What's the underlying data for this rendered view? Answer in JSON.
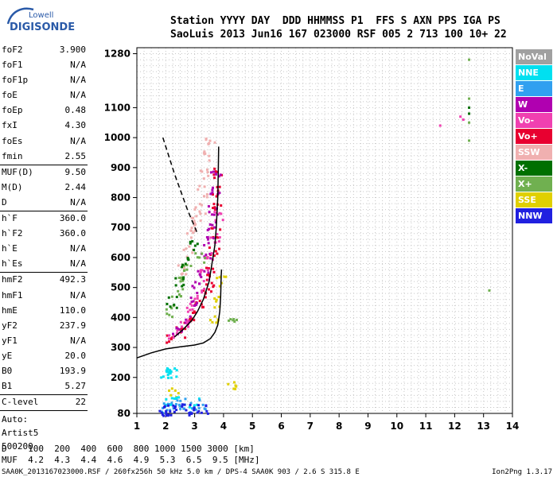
{
  "logo": {
    "line1": "Lowell",
    "line2": "DIGISONDE"
  },
  "header": {
    "row1": "Station YYYY DAY  DDD HHMMSS P1  FFS S AXN PPS IGA PS",
    "row2": "SaoLuis 2013 Jun16 167 023000 RSF 005 2 713 100 10+ 22"
  },
  "params": {
    "group1": [
      {
        "k": "foF2",
        "v": "3.900"
      },
      {
        "k": "foF1",
        "v": "N/A"
      },
      {
        "k": "foF1p",
        "v": "N/A"
      },
      {
        "k": "foE",
        "v": "N/A"
      },
      {
        "k": "foEp",
        "v": "0.48"
      },
      {
        "k": "fxI",
        "v": "4.30"
      },
      {
        "k": "foEs",
        "v": "N/A"
      },
      {
        "k": "fmin",
        "v": "2.55"
      }
    ],
    "group2": [
      {
        "k": "MUF(D)",
        "v": "9.50"
      },
      {
        "k": "M(D)",
        "v": "2.44"
      },
      {
        "k": "D",
        "v": "N/A"
      }
    ],
    "group3": [
      {
        "k": "h`F",
        "v": "360.0"
      },
      {
        "k": "h`F2",
        "v": "360.0"
      },
      {
        "k": "h`E",
        "v": "N/A"
      },
      {
        "k": "h`Es",
        "v": "N/A"
      }
    ],
    "group4": [
      {
        "k": "hmF2",
        "v": "492.3"
      },
      {
        "k": "hmF1",
        "v": "N/A"
      },
      {
        "k": "hmE",
        "v": "110.0"
      },
      {
        "k": "yF2",
        "v": "237.9"
      },
      {
        "k": "yF1",
        "v": "N/A"
      },
      {
        "k": "yE",
        "v": "20.0"
      },
      {
        "k": "B0",
        "v": "193.9"
      },
      {
        "k": "B1",
        "v": "5.27"
      }
    ],
    "clevel": {
      "k": "C-level",
      "v": "22"
    },
    "auto": [
      "Auto:",
      "Artist5",
      "500200"
    ]
  },
  "legend": [
    {
      "label": "NoVal",
      "color": "#a0a0a0"
    },
    {
      "label": "NNE",
      "color": "#00e0f0"
    },
    {
      "label": "E",
      "color": "#30a0f0"
    },
    {
      "label": "W",
      "color": "#b000b0"
    },
    {
      "label": "Vo-",
      "color": "#f040b0"
    },
    {
      "label": "Vo+",
      "color": "#e80030"
    },
    {
      "label": "SSW",
      "color": "#f0b0b0"
    },
    {
      "label": "X-",
      "color": "#007000"
    },
    {
      "label": "X+",
      "color": "#70b050"
    },
    {
      "label": "SSE",
      "color": "#e0d000"
    },
    {
      "label": "NNW",
      "color": "#2020e0"
    }
  ],
  "footer": {
    "row1": "D    100  200  400  600  800 1000 1500 3000 [km]",
    "row2": "MUF  4.2  4.3  4.4  4.6  4.9  5.3  6.5  9.5 [MHz]",
    "row3": "SAA0K_2013167023000.RSF / 260fx256h 50 kHz 5.0 km / DPS-4 SAA0K 903 / 2.6 S 315.8 E",
    "version": "Ion2Png 1.3.17"
  },
  "chart_data": {
    "type": "scatter",
    "xlim": [
      1,
      14
    ],
    "ylim": [
      80,
      1300
    ],
    "x_ticks": [
      1,
      2,
      3,
      4,
      5,
      6,
      7,
      8,
      9,
      10,
      11,
      12,
      13,
      14
    ],
    "y_ticks": [
      80,
      200,
      300,
      400,
      500,
      600,
      700,
      800,
      900,
      1000,
      1100,
      1280
    ],
    "grid": true,
    "curves": {
      "profile": [
        [
          1,
          265
        ],
        [
          1.5,
          282
        ],
        [
          2,
          295
        ],
        [
          2.5,
          302
        ],
        [
          3,
          308
        ],
        [
          3.3,
          315
        ],
        [
          3.55,
          330
        ],
        [
          3.7,
          350
        ],
        [
          3.8,
          375
        ],
        [
          3.87,
          420
        ],
        [
          3.9,
          470
        ],
        [
          3.92,
          540
        ],
        [
          3.93,
          560
        ]
      ],
      "trace": [
        [
          2.3,
          335
        ],
        [
          2.6,
          360
        ],
        [
          2.9,
          390
        ],
        [
          3.1,
          420
        ],
        [
          3.3,
          460
        ],
        [
          3.5,
          520
        ],
        [
          3.6,
          580
        ],
        [
          3.7,
          640
        ],
        [
          3.75,
          700
        ],
        [
          3.8,
          800
        ],
        [
          3.82,
          900
        ],
        [
          3.83,
          970
        ]
      ],
      "dashed": [
        [
          1.9,
          1000
        ],
        [
          2.3,
          880
        ],
        [
          2.75,
          760
        ],
        [
          3.1,
          680
        ]
      ]
    },
    "point_clusters": [
      {
        "series": "Vo+",
        "points": [
          [
            2.2,
            330
          ],
          [
            2.5,
            350
          ],
          [
            2.8,
            380
          ],
          [
            3.0,
            410
          ],
          [
            3.2,
            440
          ],
          [
            3.4,
            480
          ],
          [
            3.5,
            520
          ],
          [
            3.6,
            560
          ],
          [
            3.7,
            620
          ],
          [
            3.75,
            680
          ],
          [
            3.8,
            760
          ],
          [
            3.82,
            820
          ],
          [
            3.85,
            880
          ]
        ]
      },
      {
        "series": "W",
        "points": [
          [
            2.4,
            360
          ],
          [
            2.7,
            400
          ],
          [
            2.9,
            450
          ],
          [
            3.1,
            500
          ],
          [
            3.3,
            550
          ],
          [
            3.4,
            600
          ],
          [
            3.5,
            650
          ],
          [
            3.6,
            700
          ],
          [
            3.65,
            760
          ],
          [
            3.7,
            820
          ],
          [
            3.72,
            880
          ]
        ]
      },
      {
        "series": "SSW",
        "points": [
          [
            2.6,
            560
          ],
          [
            2.8,
            620
          ],
          [
            3.0,
            700
          ],
          [
            3.2,
            760
          ],
          [
            3.3,
            820
          ],
          [
            3.4,
            880
          ],
          [
            3.5,
            940
          ],
          [
            3.55,
            990
          ],
          [
            2.9,
            680
          ],
          [
            3.1,
            730
          ]
        ]
      },
      {
        "series": "Vo-",
        "points": [
          [
            2.3,
            340
          ],
          [
            2.6,
            380
          ],
          [
            2.9,
            430
          ],
          [
            3.2,
            480
          ],
          [
            3.4,
            540
          ],
          [
            3.55,
            600
          ],
          [
            3.7,
            660
          ],
          [
            3.8,
            740
          ]
        ]
      },
      {
        "series": "X+",
        "points": [
          [
            2.1,
            420
          ],
          [
            2.4,
            480
          ],
          [
            2.6,
            520
          ],
          [
            2.8,
            560
          ],
          [
            3.2,
            600
          ],
          [
            12.5,
            1260
          ],
          [
            12.5,
            1130
          ],
          [
            12.5,
            1050
          ],
          [
            12.5,
            990
          ],
          [
            13.2,
            490
          ],
          [
            4.3,
            400
          ]
        ]
      },
      {
        "series": "X-",
        "points": [
          [
            2.2,
            450
          ],
          [
            2.5,
            520
          ],
          [
            2.7,
            580
          ],
          [
            3.0,
            640
          ],
          [
            12.5,
            1100
          ],
          [
            12.5,
            1080
          ]
        ]
      },
      {
        "series": "SSE",
        "points": [
          [
            3.8,
            450
          ],
          [
            3.9,
            520
          ],
          [
            3.7,
            400
          ],
          [
            2.3,
            150
          ],
          [
            4.3,
            170
          ]
        ]
      },
      {
        "series": "NNE",
        "points": [
          [
            2.0,
            210
          ],
          [
            2.1,
            215
          ],
          [
            2.2,
            212
          ],
          [
            2.1,
            110
          ],
          [
            2.4,
            120
          ],
          [
            3.0,
            115
          ]
        ]
      },
      {
        "series": "E",
        "points": [
          [
            2.2,
            105
          ],
          [
            2.5,
            110
          ],
          [
            2.8,
            100
          ],
          [
            3.2,
            108
          ],
          [
            2.0,
            95
          ]
        ]
      },
      {
        "series": "NNW",
        "points": [
          [
            1.9,
            88
          ],
          [
            2.2,
            90
          ],
          [
            2.5,
            92
          ],
          [
            2.8,
            94
          ],
          [
            3.0,
            90
          ],
          [
            3.3,
            96
          ],
          [
            2.0,
            85
          ]
        ]
      },
      {
        "series": "Vo-",
        "points": [
          [
            12.2,
            1070
          ],
          [
            12.3,
            1060
          ],
          [
            11.5,
            1040
          ]
        ]
      }
    ]
  }
}
